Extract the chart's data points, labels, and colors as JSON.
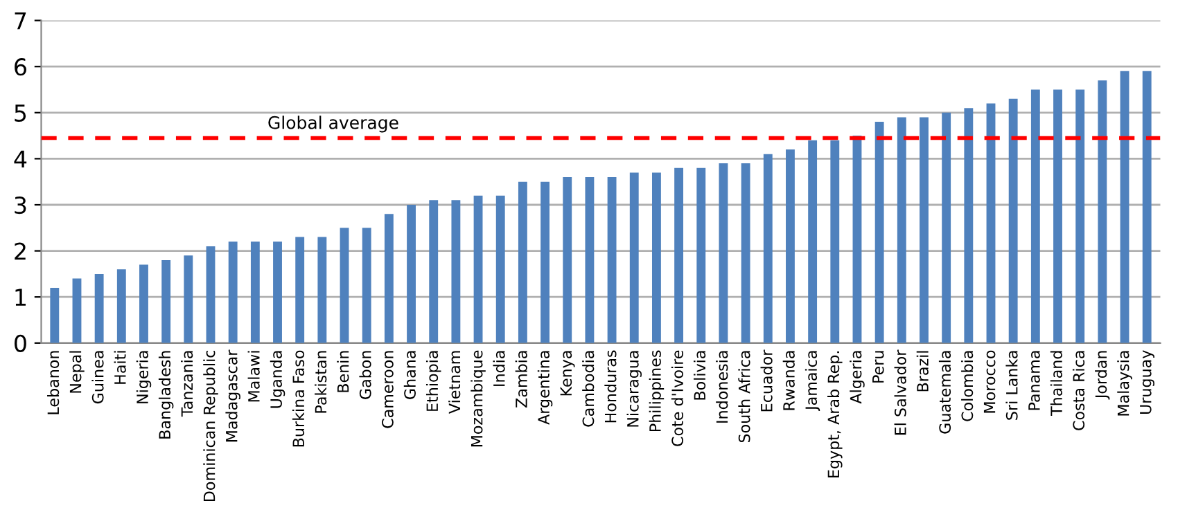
{
  "chart_data": {
    "type": "bar",
    "categories": [
      "Lebanon",
      "Nepal",
      "Guinea",
      "Haiti",
      "Nigeria",
      "Bangladesh",
      "Tanzania",
      "Dominican Republic",
      "Madagascar",
      "Malawi",
      "Uganda",
      "Burkina Faso",
      "Pakistan",
      "Benin",
      "Gabon",
      "Cameroon",
      "Ghana",
      "Ethiopia",
      "Vietnam",
      "Mozambique",
      "India",
      "Zambia",
      "Argentina",
      "Kenya",
      "Cambodia",
      "Honduras",
      "Nicaragua",
      "Philippines",
      "Cote d'Ivoire",
      "Bolivia",
      "Indonesia",
      "South Africa",
      "Ecuador",
      "Rwanda",
      "Jamaica",
      "Egypt, Arab Rep.",
      "Algeria",
      "Peru",
      "El Salvador",
      "Brazil",
      "Guatemala",
      "Colombia",
      "Morocco",
      "Sri Lanka",
      "Panama",
      "Thailand",
      "Costa Rica",
      "Jordan",
      "Malaysia",
      "Uruguay"
    ],
    "values": [
      1.2,
      1.4,
      1.5,
      1.6,
      1.7,
      1.8,
      1.9,
      2.1,
      2.2,
      2.2,
      2.2,
      2.3,
      2.3,
      2.5,
      2.5,
      2.8,
      3.0,
      3.1,
      3.1,
      3.2,
      3.2,
      3.5,
      3.5,
      3.6,
      3.6,
      3.6,
      3.7,
      3.7,
      3.8,
      3.8,
      3.9,
      3.9,
      4.1,
      4.2,
      4.4,
      4.4,
      4.5,
      4.8,
      4.9,
      4.9,
      5.0,
      5.1,
      5.2,
      5.3,
      5.5,
      5.5,
      5.5,
      5.7,
      5.9,
      5.9
    ],
    "color": "#4f81bd",
    "ylim": [
      0,
      7
    ],
    "yticks": [
      0,
      1,
      2,
      3,
      4,
      5,
      6,
      7
    ],
    "grid": "y",
    "ref_lines": [
      {
        "axis": "y",
        "value": 4.45,
        "label": "Global average",
        "color": "#ff0000",
        "line_style": "dashed"
      }
    ]
  }
}
